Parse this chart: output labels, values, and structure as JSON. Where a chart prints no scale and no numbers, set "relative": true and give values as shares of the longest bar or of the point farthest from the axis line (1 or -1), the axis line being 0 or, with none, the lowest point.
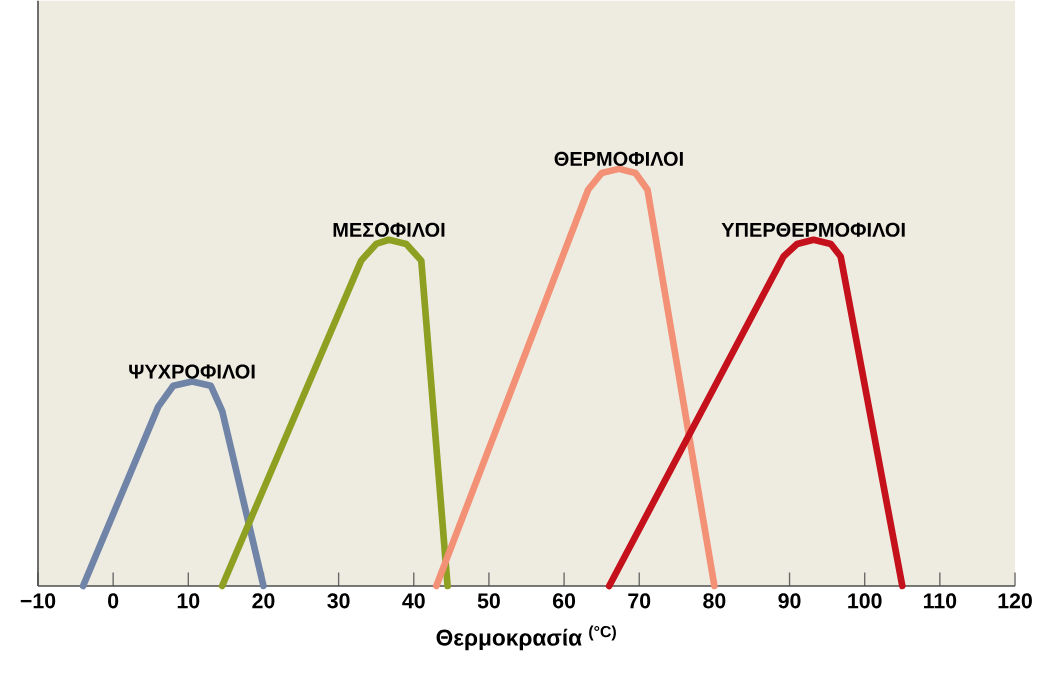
{
  "chart_data": {
    "type": "line",
    "relative": true,
    "xlabel": "Θερμοκρασία $^{(°C)}$",
    "xlim": [
      -10,
      120
    ],
    "xticks": [
      {
        "value": -10,
        "label": "−10"
      },
      0,
      10,
      20,
      30,
      40,
      50,
      60,
      70,
      80,
      90,
      100,
      110,
      120
    ],
    "series": [
      {
        "name": "ΨΥΧΡΟΦΙΛΟΙ",
        "color": "#6f84a6",
        "x": [
          -4,
          6,
          8,
          10.5,
          13,
          14.5,
          20
        ],
        "values": [
          0,
          0.43,
          0.48,
          0.49,
          0.48,
          0.42,
          0
        ]
      },
      {
        "name": "ΜΕΣΟΦΙΛΟΙ",
        "color": "#8ea021",
        "x": [
          14.5,
          33,
          35,
          36.7,
          39,
          41,
          44.5
        ],
        "values": [
          0,
          0.78,
          0.82,
          0.83,
          0.82,
          0.78,
          0
        ]
      },
      {
        "name": "ΘΕΡΜΟΦΙΛΟΙ",
        "color": "#f39177",
        "x": [
          43,
          63.2,
          65,
          67.3,
          69.5,
          71.1,
          80
        ],
        "values": [
          0,
          0.95,
          0.99,
          1,
          0.99,
          0.95,
          0
        ]
      },
      {
        "name": "ΥΠΕΡΘΕΡΜΟΦΙΛΟΙ",
        "color": "#c4111b",
        "x": [
          66,
          89.2,
          91,
          93.2,
          95.5,
          96.8,
          105
        ],
        "values": [
          0,
          0.79,
          0.82,
          0.83,
          0.82,
          0.79,
          0
        ]
      }
    ]
  }
}
